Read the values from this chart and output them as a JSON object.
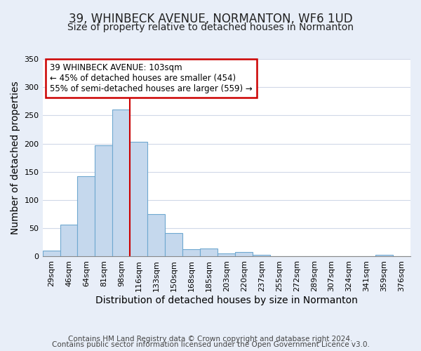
{
  "title": "39, WHINBECK AVENUE, NORMANTON, WF6 1UD",
  "subtitle": "Size of property relative to detached houses in Normanton",
  "xlabel": "Distribution of detached houses by size in Normanton",
  "ylabel": "Number of detached properties",
  "bar_color": "#c5d8ed",
  "bar_edge_color": "#6fa8d0",
  "categories": [
    "29sqm",
    "46sqm",
    "64sqm",
    "81sqm",
    "98sqm",
    "116sqm",
    "133sqm",
    "150sqm",
    "168sqm",
    "185sqm",
    "203sqm",
    "220sqm",
    "237sqm",
    "255sqm",
    "272sqm",
    "289sqm",
    "307sqm",
    "324sqm",
    "341sqm",
    "359sqm",
    "376sqm"
  ],
  "values": [
    10,
    57,
    142,
    197,
    261,
    203,
    75,
    41,
    13,
    14,
    5,
    8,
    3,
    0,
    0,
    0,
    0,
    0,
    0,
    3,
    0
  ],
  "ylim": [
    0,
    350
  ],
  "yticks": [
    0,
    50,
    100,
    150,
    200,
    250,
    300,
    350
  ],
  "vline_x": 4.5,
  "vline_color": "#cc0000",
  "annotation_title": "39 WHINBECK AVENUE: 103sqm",
  "annotation_line1": "← 45% of detached houses are smaller (454)",
  "annotation_line2": "55% of semi-detached houses are larger (559) →",
  "annotation_box_color": "#ffffff",
  "annotation_box_edge": "#cc0000",
  "footer1": "Contains HM Land Registry data © Crown copyright and database right 2024.",
  "footer2": "Contains public sector information licensed under the Open Government Licence v3.0.",
  "plot_bg_color": "#ffffff",
  "fig_bg_color": "#e8eef8",
  "grid_color": "#d0d8e8",
  "title_fontsize": 12,
  "subtitle_fontsize": 10,
  "axis_label_fontsize": 10,
  "tick_fontsize": 8,
  "footer_fontsize": 7.5
}
